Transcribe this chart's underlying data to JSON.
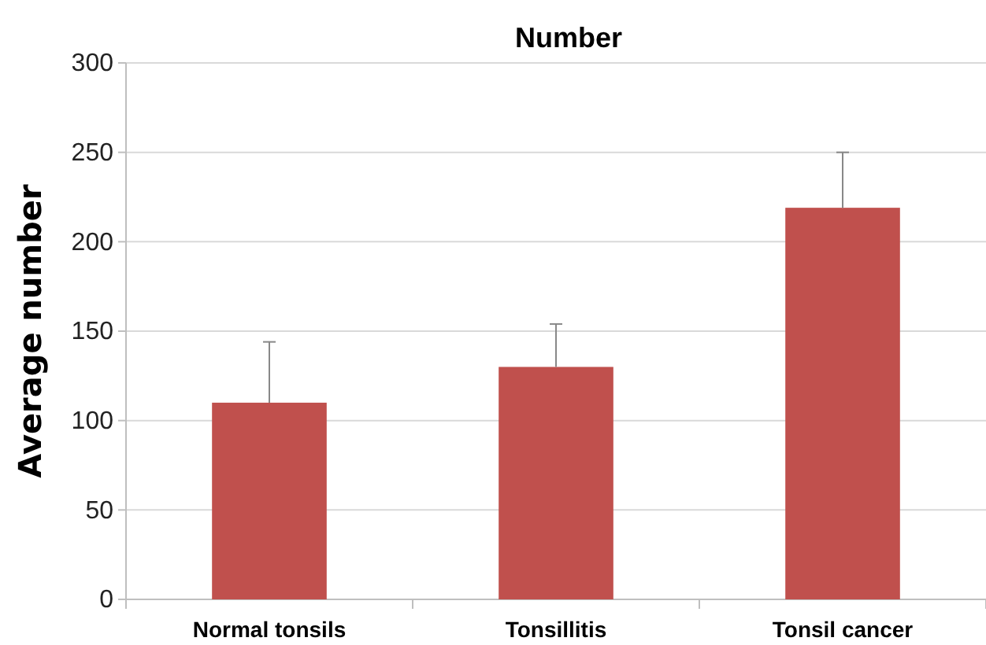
{
  "chart_data": {
    "type": "bar",
    "title": "Number",
    "ylabel": "Average number",
    "categories": [
      "Normal tonsils",
      "Tonsillitis",
      "Tonsil cancer"
    ],
    "values": [
      110,
      130,
      219
    ],
    "errors": [
      [
        110,
        144
      ],
      [
        130,
        154
      ],
      [
        219,
        250
      ]
    ],
    "color": "#c0504d",
    "ylim": [
      0,
      300
    ],
    "yticks": [
      0,
      50,
      100,
      150,
      200,
      250,
      300
    ],
    "grid": "y"
  }
}
